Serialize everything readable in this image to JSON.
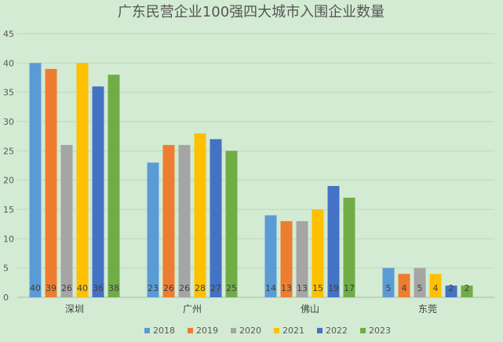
{
  "chart_data": {
    "type": "bar",
    "title": "广东民营企业100强四大城市入围企业数量",
    "xlabel": "",
    "ylabel": "",
    "categories": [
      "深圳",
      "广州",
      "佛山",
      "东莞"
    ],
    "ylim": [
      0,
      45
    ],
    "yticks": [
      0,
      5,
      10,
      15,
      20,
      25,
      30,
      35,
      40,
      45
    ],
    "grid": true,
    "legend_position": "bottom",
    "series": [
      {
        "name": "2018",
        "color": "#5b9bd5",
        "values": [
          40,
          23,
          14,
          5
        ]
      },
      {
        "name": "2019",
        "color": "#ed7d31",
        "values": [
          39,
          26,
          13,
          4
        ]
      },
      {
        "name": "2020",
        "color": "#a5a5a5",
        "values": [
          26,
          26,
          13,
          5
        ]
      },
      {
        "name": "2021",
        "color": "#ffc000",
        "values": [
          40,
          28,
          15,
          4
        ]
      },
      {
        "name": "2022",
        "color": "#4472c4",
        "values": [
          36,
          27,
          19,
          2
        ]
      },
      {
        "name": "2023",
        "color": "#70ad47",
        "values": [
          38,
          25,
          17,
          2
        ]
      }
    ]
  }
}
